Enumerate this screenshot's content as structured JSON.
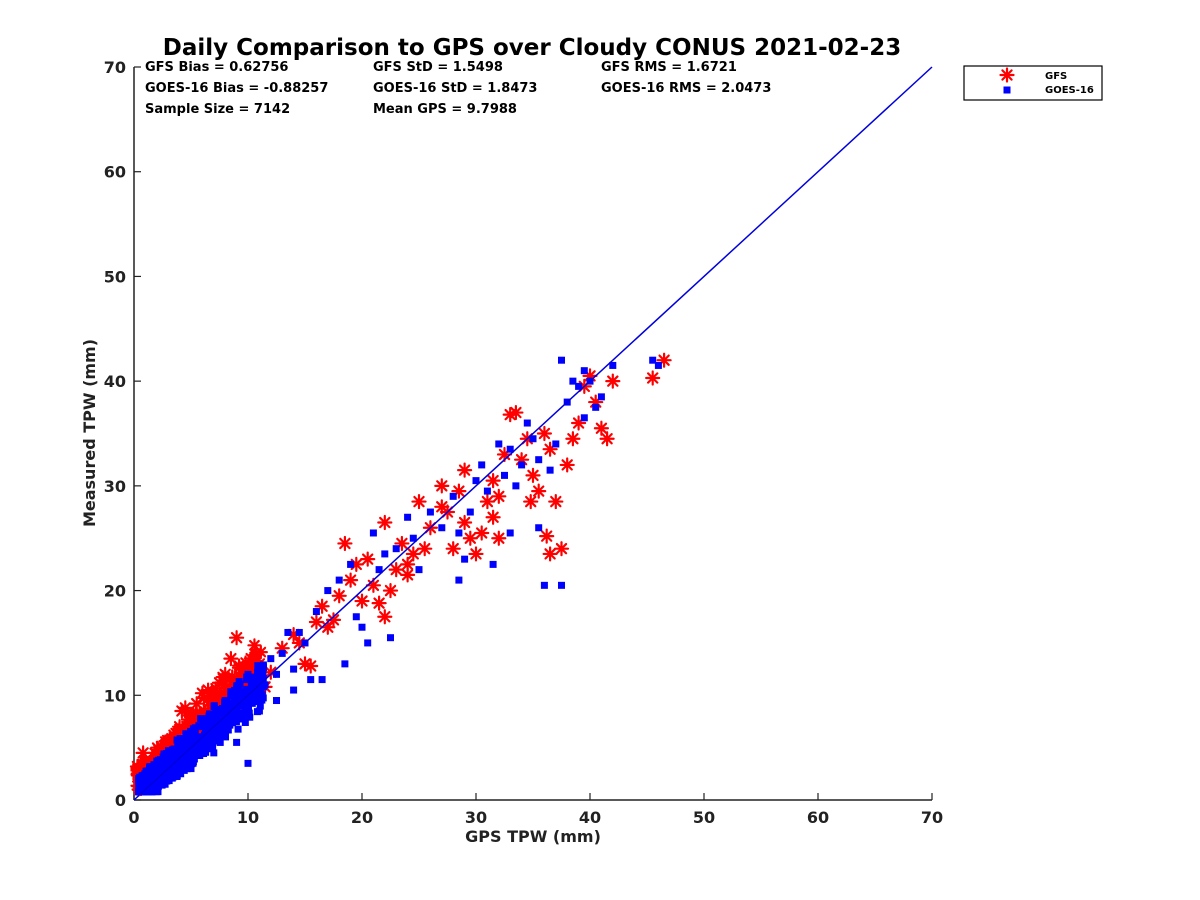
{
  "chart_data": {
    "type": "scatter",
    "title": "Daily Comparison to GPS over Cloudy CONUS 2021-02-23",
    "xlabel": "GPS TPW (mm)",
    "ylabel": "Measured TPW (mm)",
    "xlim": [
      0,
      70
    ],
    "ylim": [
      0,
      70
    ],
    "xticks": [
      "0",
      "10",
      "20",
      "30",
      "40",
      "50",
      "60",
      "70"
    ],
    "yticks": [
      "0",
      "10",
      "20",
      "30",
      "40",
      "50",
      "60",
      "70"
    ],
    "grid": false,
    "legend_position": "top-right outside",
    "stats": [
      [
        "GFS Bias = 0.62756",
        "GFS StD = 1.5498",
        "GFS RMS = 1.6721"
      ],
      [
        "GOES-16 Bias = -0.88257",
        "GOES-16 StD = 1.8473",
        "GOES-16 RMS = 2.0473"
      ],
      [
        "Sample Size = 7142",
        "Mean GPS = 9.7988",
        ""
      ]
    ],
    "reference_line": {
      "x": [
        0,
        70
      ],
      "y": [
        0,
        70
      ],
      "color": "#0000dd"
    },
    "series": [
      {
        "name": "GFS",
        "marker": "asterisk",
        "color": "#ff0000",
        "points": [
          [
            0.3,
            3.2
          ],
          [
            0.8,
            4.5
          ],
          [
            1.0,
            3.8
          ],
          [
            1.5,
            2.8
          ],
          [
            2.0,
            4.2
          ],
          [
            2.5,
            3.5
          ],
          [
            3.0,
            5.5
          ],
          [
            3.5,
            6.2
          ],
          [
            4.0,
            7.0
          ],
          [
            4.2,
            8.5
          ],
          [
            4.5,
            8.8
          ],
          [
            5.0,
            7.5
          ],
          [
            5.5,
            9.2
          ],
          [
            6.0,
            10.2
          ],
          [
            6.5,
            10.5
          ],
          [
            7.0,
            9.8
          ],
          [
            7.5,
            11.2
          ],
          [
            8.0,
            12.0
          ],
          [
            8.5,
            13.5
          ],
          [
            9.0,
            15.5
          ],
          [
            9.5,
            12.5
          ],
          [
            10.0,
            11.8
          ],
          [
            11.0,
            13.0
          ],
          [
            12.0,
            12.2
          ],
          [
            13.0,
            14.5
          ],
          [
            14.0,
            15.8
          ],
          [
            15.0,
            13.0
          ],
          [
            15.5,
            12.8
          ],
          [
            16.0,
            17.0
          ],
          [
            16.5,
            18.5
          ],
          [
            17.0,
            16.5
          ],
          [
            18.0,
            19.5
          ],
          [
            18.5,
            24.5
          ],
          [
            19.0,
            21.0
          ],
          [
            19.5,
            22.5
          ],
          [
            20.0,
            19.0
          ],
          [
            20.5,
            23.0
          ],
          [
            21.0,
            20.5
          ],
          [
            21.5,
            18.8
          ],
          [
            22.0,
            26.5
          ],
          [
            22.5,
            20.0
          ],
          [
            23.0,
            22.0
          ],
          [
            23.5,
            24.5
          ],
          [
            24.0,
            22.5
          ],
          [
            24.5,
            23.5
          ],
          [
            25.0,
            28.5
          ],
          [
            25.5,
            24.0
          ],
          [
            26.0,
            26.0
          ],
          [
            27.0,
            28.0
          ],
          [
            27.5,
            27.5
          ],
          [
            28.0,
            24.0
          ],
          [
            28.5,
            29.5
          ],
          [
            29.0,
            26.5
          ],
          [
            29.5,
            25.0
          ],
          [
            30.0,
            23.5
          ],
          [
            30.5,
            25.5
          ],
          [
            31.0,
            28.5
          ],
          [
            31.5,
            30.5
          ],
          [
            32.0,
            29.0
          ],
          [
            32.5,
            33.0
          ],
          [
            33.0,
            36.8
          ],
          [
            33.5,
            37.0
          ],
          [
            34.0,
            32.5
          ],
          [
            34.5,
            34.5
          ],
          [
            35.0,
            31.0
          ],
          [
            35.5,
            29.5
          ],
          [
            36.0,
            35.0
          ],
          [
            36.5,
            33.5
          ],
          [
            37.0,
            28.5
          ],
          [
            37.5,
            24.0
          ],
          [
            38.0,
            32.0
          ],
          [
            38.5,
            34.5
          ],
          [
            39.0,
            36.0
          ],
          [
            39.5,
            39.5
          ],
          [
            40.0,
            40.5
          ],
          [
            40.5,
            38.0
          ],
          [
            41.0,
            35.5
          ],
          [
            41.5,
            34.5
          ],
          [
            42.0,
            40.0
          ],
          [
            45.5,
            40.3
          ],
          [
            46.5,
            42.0
          ],
          [
            36.2,
            25.2
          ],
          [
            36.5,
            23.5
          ],
          [
            34.8,
            28.5
          ],
          [
            32.0,
            25.0
          ],
          [
            27.0,
            30.0
          ],
          [
            29.0,
            31.5
          ],
          [
            31.5,
            27.0
          ],
          [
            24.0,
            21.5
          ],
          [
            22.0,
            17.5
          ],
          [
            17.5,
            17.2
          ],
          [
            14.5,
            15.0
          ],
          [
            11.5,
            10.8
          ],
          [
            6.2,
            7.2
          ],
          [
            3.2,
            4.0
          ],
          [
            1.8,
            2.2
          ]
        ]
      },
      {
        "name": "GOES-16",
        "marker": "square",
        "color": "#0000ff",
        "points": [
          [
            0.5,
            1.5
          ],
          [
            1.0,
            2.5
          ],
          [
            1.5,
            2.0
          ],
          [
            2.0,
            3.0
          ],
          [
            2.5,
            2.2
          ],
          [
            3.0,
            4.0
          ],
          [
            3.5,
            3.2
          ],
          [
            4.0,
            5.0
          ],
          [
            4.5,
            4.2
          ],
          [
            5.0,
            6.0
          ],
          [
            5.5,
            5.0
          ],
          [
            6.0,
            7.0
          ],
          [
            6.5,
            6.2
          ],
          [
            7.0,
            8.0
          ],
          [
            7.5,
            7.2
          ],
          [
            8.0,
            9.5
          ],
          [
            8.5,
            8.0
          ],
          [
            9.0,
            10.5
          ],
          [
            9.5,
            9.0
          ],
          [
            10.0,
            12.0
          ],
          [
            10.5,
            10.0
          ],
          [
            11.0,
            12.5
          ],
          [
            11.5,
            11.0
          ],
          [
            12.0,
            13.5
          ],
          [
            12.5,
            12.0
          ],
          [
            13.0,
            14.0
          ],
          [
            14.0,
            12.5
          ],
          [
            14.5,
            16.0
          ],
          [
            15.0,
            15.0
          ],
          [
            16.0,
            18.0
          ],
          [
            17.0,
            20.0
          ],
          [
            18.0,
            21.0
          ],
          [
            19.0,
            22.5
          ],
          [
            20.0,
            16.5
          ],
          [
            20.5,
            15.0
          ],
          [
            21.0,
            25.5
          ],
          [
            21.5,
            22.0
          ],
          [
            22.0,
            23.5
          ],
          [
            23.0,
            24.0
          ],
          [
            24.0,
            27.0
          ],
          [
            24.5,
            25.0
          ],
          [
            25.0,
            22.0
          ],
          [
            26.0,
            27.5
          ],
          [
            27.0,
            26.0
          ],
          [
            28.0,
            29.0
          ],
          [
            28.5,
            25.5
          ],
          [
            29.0,
            23.0
          ],
          [
            29.5,
            27.5
          ],
          [
            30.0,
            30.5
          ],
          [
            30.5,
            32.0
          ],
          [
            31.0,
            29.5
          ],
          [
            31.5,
            22.5
          ],
          [
            32.0,
            34.0
          ],
          [
            32.5,
            31.0
          ],
          [
            33.0,
            33.5
          ],
          [
            33.5,
            30.0
          ],
          [
            34.0,
            32.0
          ],
          [
            34.5,
            36.0
          ],
          [
            35.0,
            34.5
          ],
          [
            35.5,
            32.5
          ],
          [
            36.0,
            20.5
          ],
          [
            36.5,
            31.5
          ],
          [
            37.0,
            34.0
          ],
          [
            37.5,
            20.5
          ],
          [
            38.0,
            38.0
          ],
          [
            38.5,
            40.0
          ],
          [
            39.0,
            39.5
          ],
          [
            39.5,
            41.0
          ],
          [
            40.0,
            40.0
          ],
          [
            40.5,
            37.5
          ],
          [
            41.0,
            38.5
          ],
          [
            42.0,
            41.5
          ],
          [
            45.5,
            42.0
          ],
          [
            46.0,
            41.5
          ],
          [
            22.5,
            15.5
          ],
          [
            28.5,
            21.0
          ],
          [
            33.0,
            25.5
          ],
          [
            35.5,
            26.0
          ],
          [
            37.5,
            42.0
          ],
          [
            39.5,
            36.5
          ],
          [
            9.0,
            5.5
          ],
          [
            7.0,
            4.5
          ],
          [
            5.0,
            3.0
          ],
          [
            3.0,
            2.0
          ],
          [
            11.0,
            8.5
          ],
          [
            12.5,
            9.5
          ],
          [
            14.0,
            10.5
          ],
          [
            15.5,
            11.5
          ],
          [
            16.5,
            11.5
          ],
          [
            18.5,
            13.0
          ],
          [
            19.5,
            17.5
          ],
          [
            13.5,
            16.0
          ],
          [
            10.0,
            3.5
          ]
        ]
      }
    ]
  }
}
